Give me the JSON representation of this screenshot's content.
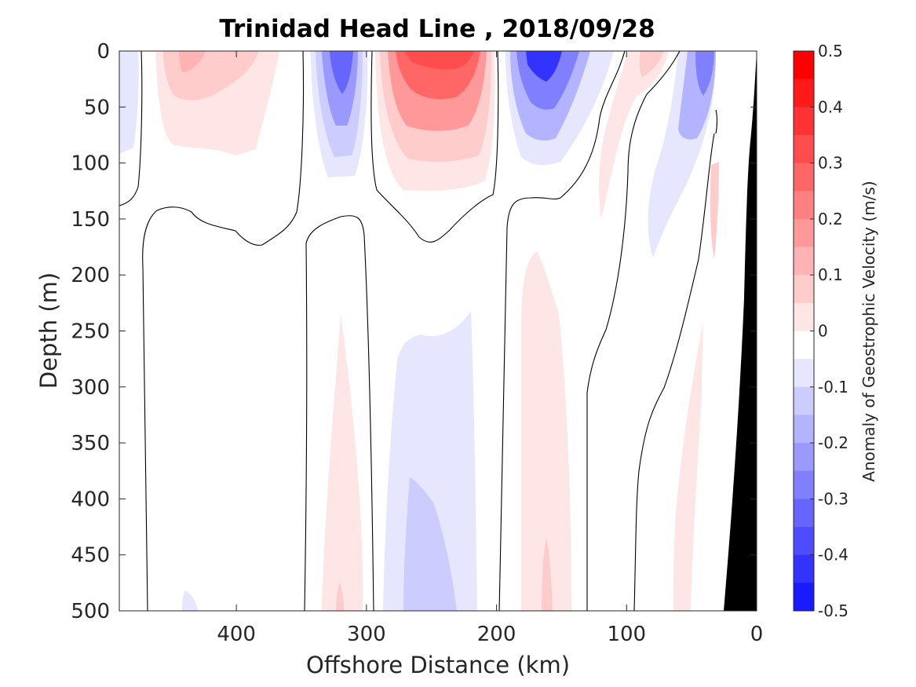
{
  "chart_data": {
    "type": "contourf",
    "title": "Trinidad Head Line , 2018/09/28",
    "xlabel": "Offshore Distance (km)",
    "ylabel": "Depth (m)",
    "xlim": [
      490,
      0
    ],
    "ylim": [
      0,
      500
    ],
    "x_direction": "reversed",
    "y_direction": "reversed",
    "x_ticks": [
      400,
      300,
      200,
      100,
      0
    ],
    "y_ticks": [
      0,
      50,
      100,
      150,
      200,
      250,
      300,
      350,
      400,
      450,
      500
    ],
    "colorbar": {
      "label": "Anomaly of Geostrophic Velocity (m/s)",
      "ticks": [
        0.5,
        0.4,
        0.3,
        0.2,
        0.1,
        0,
        -0.1,
        -0.2,
        -0.3,
        -0.4,
        -0.5
      ],
      "tick_labels": [
        "0.5",
        "0.4",
        "0.3",
        "0.2",
        "0.1",
        "0",
        "-0.1",
        "-0.2",
        "-0.3",
        "-0.4",
        "-0.5"
      ],
      "levels": [
        0.5,
        0.45,
        0.4,
        0.35,
        0.3,
        0.25,
        0.2,
        0.15,
        0.1,
        0.05,
        0,
        -0.05,
        -0.1,
        -0.15,
        -0.2,
        -0.25,
        -0.3,
        -0.35,
        -0.4,
        -0.45,
        -0.5
      ],
      "band_colors": [
        "#ff0000",
        "#ff1a1a",
        "#ff3333",
        "#ff4d4d",
        "#ff6666",
        "#ff8080",
        "#ff9999",
        "#ffb3b3",
        "#ffcccc",
        "#ffe6e6",
        "#ffffff",
        "#e6e6ff",
        "#ccccff",
        "#b3b3ff",
        "#9999ff",
        "#8080ff",
        "#6666ff",
        "#4d4dff",
        "#3333ff",
        "#1a1aff"
      ]
    },
    "features": [
      {
        "kind": "cell",
        "sign": "negative",
        "center_km": 480,
        "depth_range_m": [
          0,
          90
        ],
        "peak": -0.1
      },
      {
        "kind": "cell",
        "sign": "positive",
        "center_km": 410,
        "depth_range_m": [
          0,
          95
        ],
        "peak": 0.15
      },
      {
        "kind": "cell",
        "sign": "negative",
        "center_km": 318,
        "depth_range_m": [
          0,
          115
        ],
        "peak": -0.3
      },
      {
        "kind": "cell",
        "sign": "positive",
        "center_km": 250,
        "depth_range_m": [
          0,
          125
        ],
        "peak": 0.3
      },
      {
        "kind": "cell",
        "sign": "negative",
        "center_km": 165,
        "depth_range_m": [
          0,
          110
        ],
        "peak": -0.4
      },
      {
        "kind": "cell",
        "sign": "positive",
        "center_km": 95,
        "depth_range_m": [
          0,
          100
        ],
        "peak": 0.15
      },
      {
        "kind": "cell",
        "sign": "negative",
        "center_km": 55,
        "depth_range_m": [
          0,
          185
        ],
        "peak": -0.3
      },
      {
        "kind": "cell",
        "sign": "positive",
        "center_km": 320,
        "depth_range_m": [
          235,
          500
        ],
        "peak": 0.15
      },
      {
        "kind": "cell",
        "sign": "negative",
        "center_km": 250,
        "depth_range_m": [
          240,
          500
        ],
        "peak": -0.15
      },
      {
        "kind": "cell",
        "sign": "positive",
        "center_km": 160,
        "depth_range_m": [
          180,
          500
        ],
        "peak": 0.15
      },
      {
        "kind": "cell",
        "sign": "positive",
        "center_km": 50,
        "depth_range_m": [
          250,
          500
        ],
        "peak": 0.15
      }
    ],
    "bathymetry": {
      "color": "#000000",
      "bottom_km_at_500m": 25,
      "surface_km_at_0m": 0
    }
  }
}
